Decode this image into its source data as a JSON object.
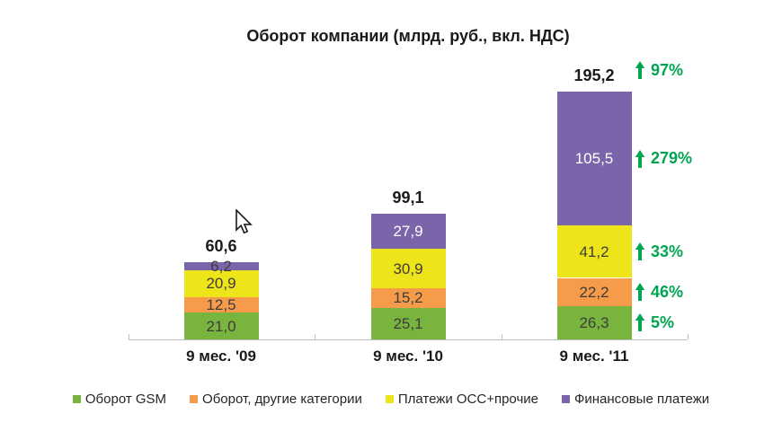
{
  "chart_data": {
    "type": "bar",
    "stacked": true,
    "title": "Оборот компании (млрд. руб., вкл. НДС)",
    "categories": [
      "9 мес. '09",
      "9 мес. '10",
      "9 мес. '11"
    ],
    "series": [
      {
        "name": "Оборот GSM",
        "color": "#79B43F",
        "light_label": false,
        "values": [
          21.0,
          25.1,
          26.3
        ],
        "labels": [
          "21,0",
          "25,1",
          "26,3"
        ]
      },
      {
        "name": "Оборот, другие категории",
        "color": "#F59B49",
        "light_label": false,
        "values": [
          12.5,
          15.2,
          22.2
        ],
        "labels": [
          "12,5",
          "15,2",
          "22,2"
        ]
      },
      {
        "name": "Платежи ОСС+прочие",
        "color": "#EDE41A",
        "light_label": false,
        "values": [
          20.9,
          30.9,
          41.2
        ],
        "labels": [
          "20,9",
          "30,9",
          "41,2"
        ]
      },
      {
        "name": "Финансовые платежи",
        "color": "#7B64A9",
        "light_label": true,
        "values": [
          6.2,
          27.9,
          105.5
        ],
        "labels": [
          "6,2",
          "27,9",
          "105,5"
        ]
      }
    ],
    "totals": [
      60.6,
      99.1,
      195.2
    ],
    "total_labels": [
      "60,6",
      "99,1",
      "195,2"
    ],
    "growth": {
      "total": "97%",
      "by_series": [
        "5%",
        "46%",
        "33%",
        "279%"
      ],
      "arrow_icon": "up-arrow-icon",
      "color": "#00A551"
    },
    "legend_position": "bottom",
    "grid": false,
    "label_color_dark": "#3F3C3C",
    "label_color_light": "#FFFFFF",
    "axis_color": "#BFBFBF",
    "ylim": [
      0,
      210
    ]
  },
  "cursor": {
    "name": "mouse-pointer"
  }
}
